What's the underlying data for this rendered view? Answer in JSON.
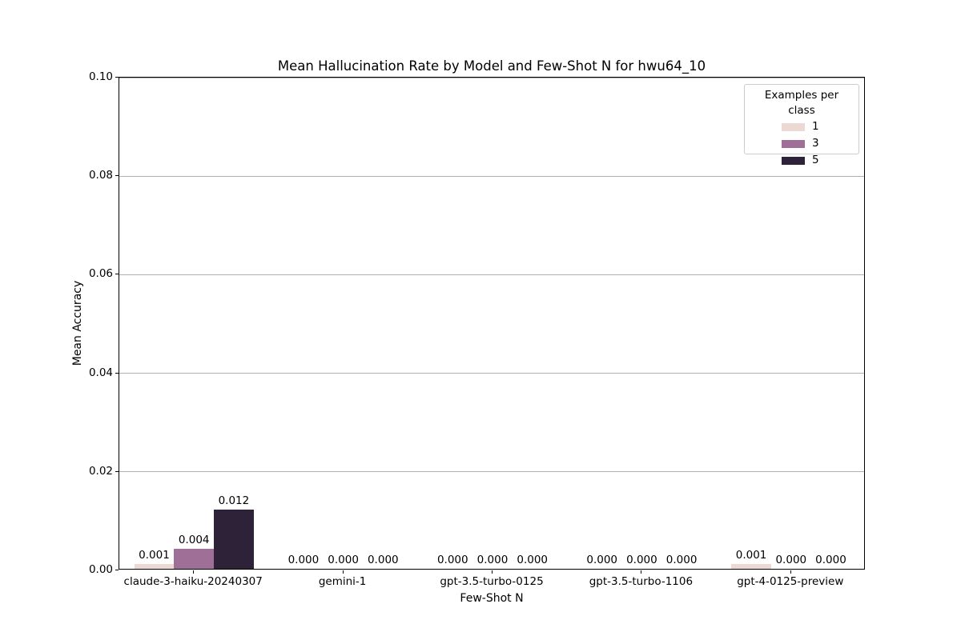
{
  "chart_data": {
    "type": "bar",
    "title": "Mean Hallucination Rate by Model and Few-Shot N for hwu64_10",
    "xlabel": "Few-Shot N",
    "ylabel": "Mean Accuracy",
    "ylim": [
      0,
      0.1
    ],
    "yticks": [
      0.0,
      0.02,
      0.04,
      0.06,
      0.08,
      0.1
    ],
    "ytick_labels": [
      "0.00",
      "0.02",
      "0.04",
      "0.06",
      "0.08",
      "0.10"
    ],
    "categories": [
      "claude-3-haiku-20240307",
      "gemini-1",
      "gpt-3.5-turbo-0125",
      "gpt-3.5-turbo-1106",
      "gpt-4-0125-preview"
    ],
    "series": [
      {
        "name": "1",
        "color": "#ecd9d4",
        "values": [
          0.001,
          0.0,
          0.0,
          0.0,
          0.001
        ],
        "labels": [
          "0.001",
          "0.000",
          "0.000",
          "0.000",
          "0.001"
        ]
      },
      {
        "name": "3",
        "color": "#a06f97",
        "values": [
          0.004,
          0.0,
          0.0,
          0.0,
          0.0
        ],
        "labels": [
          "0.004",
          "0.000",
          "0.000",
          "0.000",
          "0.000"
        ]
      },
      {
        "name": "5",
        "color": "#2d2238",
        "values": [
          0.012,
          0.0,
          0.0,
          0.0,
          0.0
        ],
        "labels": [
          "0.012",
          "0.000",
          "0.000",
          "0.000",
          "0.000"
        ]
      }
    ],
    "legend": {
      "title": "Examples per class",
      "position": "upper right"
    },
    "grid": "horizontal",
    "grid_color": "#b0b0b0",
    "bar_group_fraction": 0.8
  }
}
